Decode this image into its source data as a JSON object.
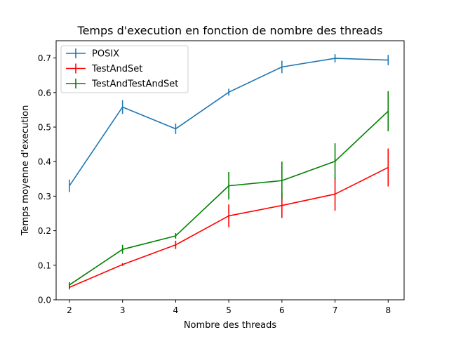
{
  "chart_data": {
    "type": "line",
    "title": "Temps d'execution en fonction de nombre des threads",
    "xlabel": "Nombre des threads",
    "ylabel": "Temps moyenne d'execution",
    "x": [
      2,
      3,
      4,
      5,
      6,
      7,
      8
    ],
    "xlim": [
      1.75,
      8.3
    ],
    "ylim": [
      0,
      0.75
    ],
    "xticks": [
      2,
      3,
      4,
      5,
      6,
      7,
      8
    ],
    "yticks": [
      0.0,
      0.1,
      0.2,
      0.3,
      0.4,
      0.5,
      0.6,
      0.7
    ],
    "ytick_labels": [
      "0.0",
      "0.1",
      "0.2",
      "0.3",
      "0.4",
      "0.5",
      "0.6",
      "0.7"
    ],
    "grid": false,
    "legend": "upper-left",
    "series": [
      {
        "name": "POSIX",
        "color": "#1f77b4",
        "values": [
          0.33,
          0.558,
          0.495,
          0.601,
          0.674,
          0.699,
          0.694
        ],
        "errors": [
          0.018,
          0.02,
          0.015,
          0.01,
          0.018,
          0.012,
          0.015
        ]
      },
      {
        "name": "TestAndSet",
        "color": "#ff0000",
        "values": [
          0.036,
          0.102,
          0.159,
          0.243,
          0.273,
          0.306,
          0.383
        ],
        "errors": [
          0.006,
          0.004,
          0.012,
          0.033,
          0.036,
          0.048,
          0.055
        ]
      },
      {
        "name": "TestAndTestAndSet",
        "color": "#008000",
        "values": [
          0.043,
          0.146,
          0.185,
          0.33,
          0.345,
          0.401,
          0.546
        ],
        "errors": [
          0.008,
          0.013,
          0.008,
          0.04,
          0.055,
          0.052,
          0.058
        ]
      }
    ]
  }
}
